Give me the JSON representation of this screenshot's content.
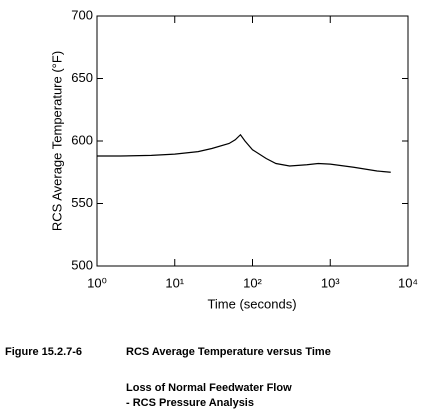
{
  "chart_data": {
    "type": "line",
    "x_label": "Time (seconds)",
    "y_label": "RCS Average Temperature  (°F)",
    "x_log": true,
    "xlim": [
      1,
      10000
    ],
    "xticks": [
      {
        "value": 1,
        "label": "10⁰"
      },
      {
        "value": 10,
        "label": "10¹"
      },
      {
        "value": 100,
        "label": "10²"
      },
      {
        "value": 1000,
        "label": "10³"
      },
      {
        "value": 10000,
        "label": "10⁴"
      }
    ],
    "ylim": [
      500,
      700
    ],
    "yticks": [
      500,
      550,
      600,
      650,
      700
    ],
    "x": [
      1,
      2,
      5,
      10,
      20,
      30,
      50,
      60,
      70,
      80,
      100,
      150,
      200,
      300,
      500,
      700,
      1000,
      2000,
      4000,
      6000
    ],
    "series": [
      {
        "name": "RCS Average Temperature",
        "color": "#000000",
        "values": [
          588,
          588,
          588.5,
          589.5,
          591.5,
          594,
          598,
          601,
          605,
          600,
          593,
          586,
          582,
          580,
          581,
          582,
          581.5,
          579,
          576,
          575
        ]
      }
    ]
  },
  "caption": {
    "figure": "Figure 15.2.7-6",
    "title": "RCS Average Temperature versus Time",
    "lines": [
      "Loss of Normal Feedwater Flow",
      "- RCS Pressure Analysis"
    ]
  }
}
